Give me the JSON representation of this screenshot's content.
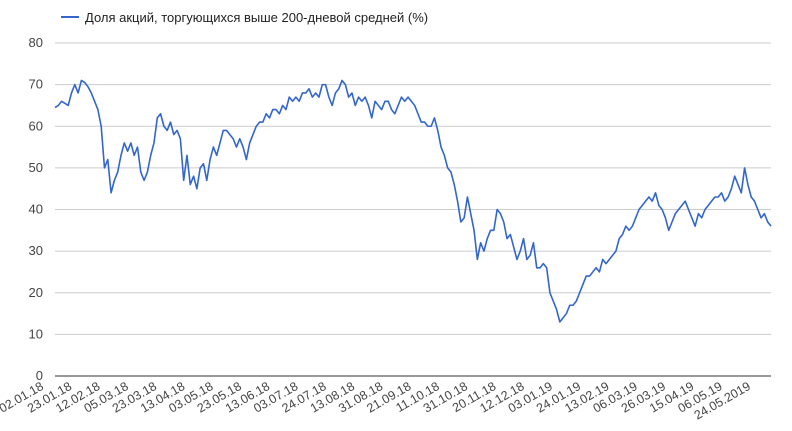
{
  "chart_data": {
    "type": "line",
    "legend_position": "top-left",
    "grid": true,
    "ylim": [
      0,
      80
    ],
    "yticks": [
      0,
      10,
      20,
      30,
      40,
      50,
      60,
      70,
      80
    ],
    "xticks": [
      "02.01.18",
      "23.01.18",
      "12.02.18",
      "05.03.18",
      "23.03.18",
      "13.04.18",
      "03.05.18",
      "23.05.18",
      "13.06.18",
      "03.07.18",
      "24.07.18",
      "13.08.18",
      "31.08.18",
      "21.09.18",
      "11.10.18",
      "31.10.18",
      "20.11.18",
      "12.12.18",
      "03.01.19",
      "24.01.19",
      "13.02.19",
      "06.03.19",
      "26.03.19",
      "15.04.19",
      "06.05.19",
      "24.05.2019"
    ],
    "series": [
      {
        "name": "Доля акций, торгующихся выше 200-дневой средней (%)",
        "color": "#3366cc",
        "values": [
          64.5,
          65,
          66,
          65.5,
          65,
          68,
          70,
          68,
          71,
          70.5,
          69.5,
          68,
          66,
          64,
          60,
          50,
          52,
          44,
          47,
          49,
          53,
          56,
          54,
          56,
          53,
          55,
          49,
          47,
          49,
          53,
          56,
          62,
          63,
          60,
          59,
          61,
          58,
          59,
          57,
          47,
          53,
          46,
          48,
          45,
          50,
          51,
          47,
          52,
          55,
          53,
          56,
          59,
          59,
          58,
          57,
          55,
          57,
          55,
          52,
          56,
          58,
          60,
          61,
          61,
          63,
          62,
          64,
          64,
          63,
          65,
          64,
          67,
          66,
          67,
          66,
          68,
          68,
          69,
          67,
          68,
          67,
          70,
          70,
          67,
          65,
          68,
          69,
          71,
          70,
          67,
          68,
          65,
          67,
          66,
          67,
          65,
          62,
          66,
          65,
          64,
          66,
          66,
          64,
          63,
          65,
          67,
          66,
          67,
          66,
          65,
          63,
          61,
          61,
          60,
          60,
          62,
          59,
          55,
          53,
          50,
          49,
          46,
          42,
          37,
          38,
          43,
          39,
          35,
          28,
          32,
          30,
          33,
          35,
          35,
          40,
          39,
          37,
          33,
          34,
          31,
          28,
          30,
          33,
          28,
          29,
          32,
          26,
          26,
          27,
          26,
          20,
          18,
          16,
          13,
          14,
          15,
          17,
          17,
          18,
          20,
          22,
          24,
          24,
          25,
          26,
          25,
          28,
          27,
          28,
          29,
          30,
          33,
          34,
          36,
          35,
          36,
          38,
          40,
          41,
          42,
          43,
          42,
          44,
          41,
          40,
          38,
          35,
          37,
          39,
          40,
          41,
          42,
          40,
          38,
          36,
          39,
          38,
          40,
          41,
          42,
          43,
          43,
          44,
          42,
          43,
          45,
          48,
          46,
          44,
          50,
          46,
          43,
          42,
          40,
          38,
          39,
          37,
          36
        ]
      }
    ]
  }
}
